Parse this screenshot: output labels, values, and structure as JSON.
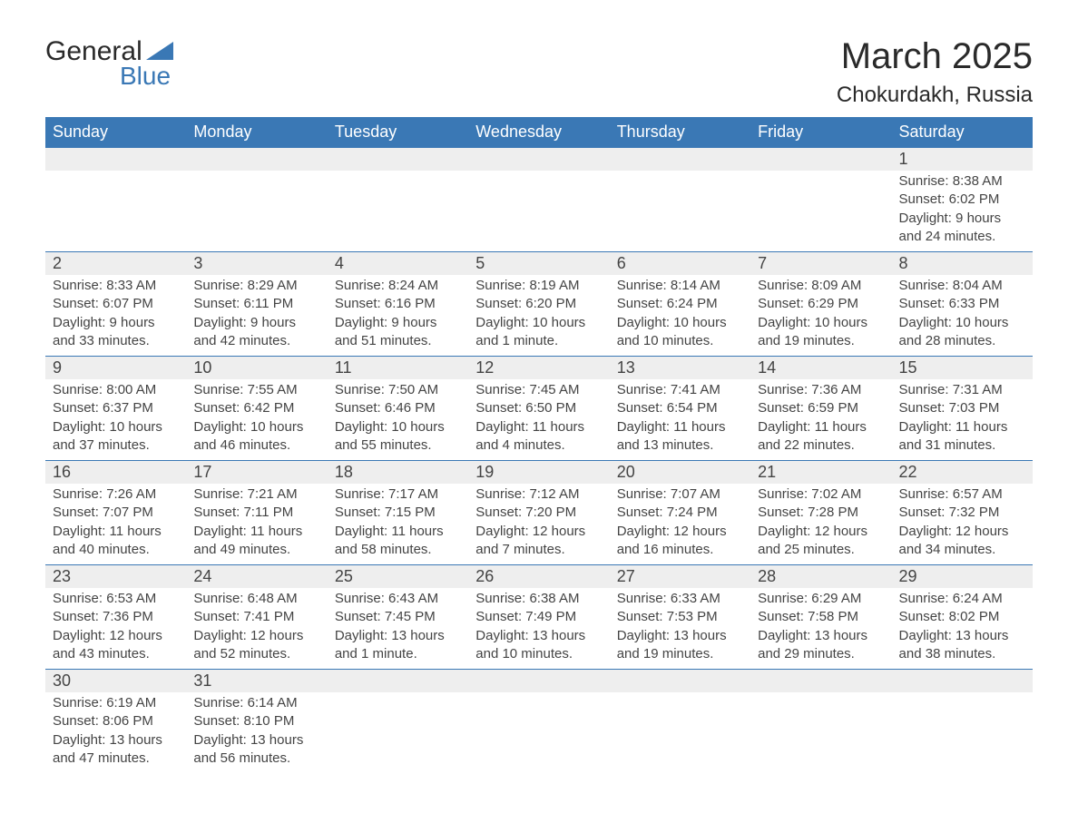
{
  "logo": {
    "text1": "General",
    "text2": "Blue"
  },
  "title": "March 2025",
  "location": "Chokurdakh, Russia",
  "colors": {
    "header_bg": "#3a78b5",
    "header_text": "#ffffff",
    "daynum_bg": "#eeeeee",
    "text": "#444444",
    "border": "#3a78b5"
  },
  "weekdays": [
    "Sunday",
    "Monday",
    "Tuesday",
    "Wednesday",
    "Thursday",
    "Friday",
    "Saturday"
  ],
  "weeks": [
    [
      null,
      null,
      null,
      null,
      null,
      null,
      {
        "n": "1",
        "sunrise": "Sunrise: 8:38 AM",
        "sunset": "Sunset: 6:02 PM",
        "daylight": "Daylight: 9 hours and 24 minutes."
      }
    ],
    [
      {
        "n": "2",
        "sunrise": "Sunrise: 8:33 AM",
        "sunset": "Sunset: 6:07 PM",
        "daylight": "Daylight: 9 hours and 33 minutes."
      },
      {
        "n": "3",
        "sunrise": "Sunrise: 8:29 AM",
        "sunset": "Sunset: 6:11 PM",
        "daylight": "Daylight: 9 hours and 42 minutes."
      },
      {
        "n": "4",
        "sunrise": "Sunrise: 8:24 AM",
        "sunset": "Sunset: 6:16 PM",
        "daylight": "Daylight: 9 hours and 51 minutes."
      },
      {
        "n": "5",
        "sunrise": "Sunrise: 8:19 AM",
        "sunset": "Sunset: 6:20 PM",
        "daylight": "Daylight: 10 hours and 1 minute."
      },
      {
        "n": "6",
        "sunrise": "Sunrise: 8:14 AM",
        "sunset": "Sunset: 6:24 PM",
        "daylight": "Daylight: 10 hours and 10 minutes."
      },
      {
        "n": "7",
        "sunrise": "Sunrise: 8:09 AM",
        "sunset": "Sunset: 6:29 PM",
        "daylight": "Daylight: 10 hours and 19 minutes."
      },
      {
        "n": "8",
        "sunrise": "Sunrise: 8:04 AM",
        "sunset": "Sunset: 6:33 PM",
        "daylight": "Daylight: 10 hours and 28 minutes."
      }
    ],
    [
      {
        "n": "9",
        "sunrise": "Sunrise: 8:00 AM",
        "sunset": "Sunset: 6:37 PM",
        "daylight": "Daylight: 10 hours and 37 minutes."
      },
      {
        "n": "10",
        "sunrise": "Sunrise: 7:55 AM",
        "sunset": "Sunset: 6:42 PM",
        "daylight": "Daylight: 10 hours and 46 minutes."
      },
      {
        "n": "11",
        "sunrise": "Sunrise: 7:50 AM",
        "sunset": "Sunset: 6:46 PM",
        "daylight": "Daylight: 10 hours and 55 minutes."
      },
      {
        "n": "12",
        "sunrise": "Sunrise: 7:45 AM",
        "sunset": "Sunset: 6:50 PM",
        "daylight": "Daylight: 11 hours and 4 minutes."
      },
      {
        "n": "13",
        "sunrise": "Sunrise: 7:41 AM",
        "sunset": "Sunset: 6:54 PM",
        "daylight": "Daylight: 11 hours and 13 minutes."
      },
      {
        "n": "14",
        "sunrise": "Sunrise: 7:36 AM",
        "sunset": "Sunset: 6:59 PM",
        "daylight": "Daylight: 11 hours and 22 minutes."
      },
      {
        "n": "15",
        "sunrise": "Sunrise: 7:31 AM",
        "sunset": "Sunset: 7:03 PM",
        "daylight": "Daylight: 11 hours and 31 minutes."
      }
    ],
    [
      {
        "n": "16",
        "sunrise": "Sunrise: 7:26 AM",
        "sunset": "Sunset: 7:07 PM",
        "daylight": "Daylight: 11 hours and 40 minutes."
      },
      {
        "n": "17",
        "sunrise": "Sunrise: 7:21 AM",
        "sunset": "Sunset: 7:11 PM",
        "daylight": "Daylight: 11 hours and 49 minutes."
      },
      {
        "n": "18",
        "sunrise": "Sunrise: 7:17 AM",
        "sunset": "Sunset: 7:15 PM",
        "daylight": "Daylight: 11 hours and 58 minutes."
      },
      {
        "n": "19",
        "sunrise": "Sunrise: 7:12 AM",
        "sunset": "Sunset: 7:20 PM",
        "daylight": "Daylight: 12 hours and 7 minutes."
      },
      {
        "n": "20",
        "sunrise": "Sunrise: 7:07 AM",
        "sunset": "Sunset: 7:24 PM",
        "daylight": "Daylight: 12 hours and 16 minutes."
      },
      {
        "n": "21",
        "sunrise": "Sunrise: 7:02 AM",
        "sunset": "Sunset: 7:28 PM",
        "daylight": "Daylight: 12 hours and 25 minutes."
      },
      {
        "n": "22",
        "sunrise": "Sunrise: 6:57 AM",
        "sunset": "Sunset: 7:32 PM",
        "daylight": "Daylight: 12 hours and 34 minutes."
      }
    ],
    [
      {
        "n": "23",
        "sunrise": "Sunrise: 6:53 AM",
        "sunset": "Sunset: 7:36 PM",
        "daylight": "Daylight: 12 hours and 43 minutes."
      },
      {
        "n": "24",
        "sunrise": "Sunrise: 6:48 AM",
        "sunset": "Sunset: 7:41 PM",
        "daylight": "Daylight: 12 hours and 52 minutes."
      },
      {
        "n": "25",
        "sunrise": "Sunrise: 6:43 AM",
        "sunset": "Sunset: 7:45 PM",
        "daylight": "Daylight: 13 hours and 1 minute."
      },
      {
        "n": "26",
        "sunrise": "Sunrise: 6:38 AM",
        "sunset": "Sunset: 7:49 PM",
        "daylight": "Daylight: 13 hours and 10 minutes."
      },
      {
        "n": "27",
        "sunrise": "Sunrise: 6:33 AM",
        "sunset": "Sunset: 7:53 PM",
        "daylight": "Daylight: 13 hours and 19 minutes."
      },
      {
        "n": "28",
        "sunrise": "Sunrise: 6:29 AM",
        "sunset": "Sunset: 7:58 PM",
        "daylight": "Daylight: 13 hours and 29 minutes."
      },
      {
        "n": "29",
        "sunrise": "Sunrise: 6:24 AM",
        "sunset": "Sunset: 8:02 PM",
        "daylight": "Daylight: 13 hours and 38 minutes."
      }
    ],
    [
      {
        "n": "30",
        "sunrise": "Sunrise: 6:19 AM",
        "sunset": "Sunset: 8:06 PM",
        "daylight": "Daylight: 13 hours and 47 minutes."
      },
      {
        "n": "31",
        "sunrise": "Sunrise: 6:14 AM",
        "sunset": "Sunset: 8:10 PM",
        "daylight": "Daylight: 13 hours and 56 minutes."
      },
      null,
      null,
      null,
      null,
      null
    ]
  ]
}
